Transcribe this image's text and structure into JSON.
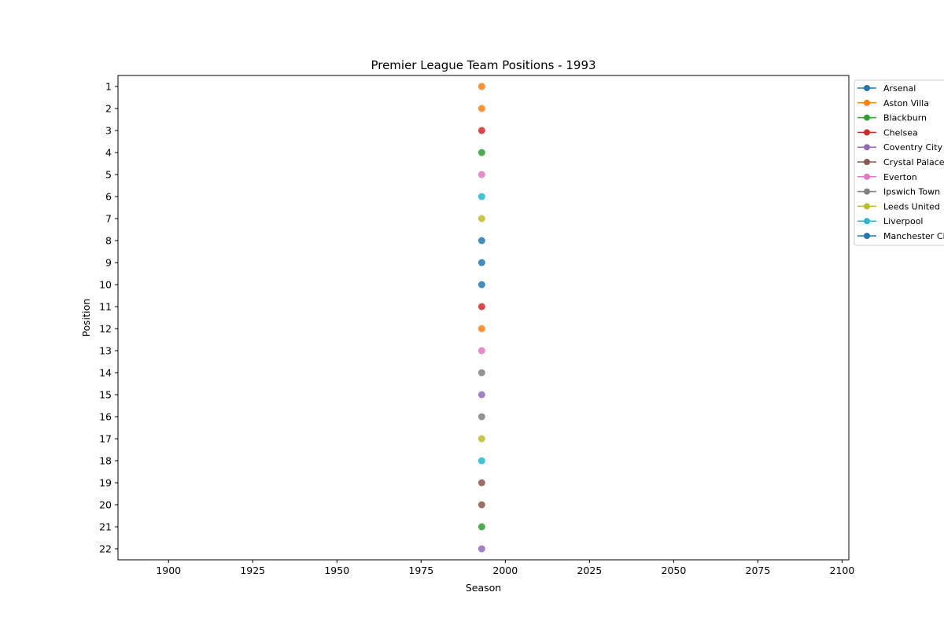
{
  "chart_data": {
    "type": "scatter",
    "title": "Premier League Team Positions - 1993",
    "xlabel": "Season",
    "ylabel": "Position",
    "xlim": [
      1885,
      2102
    ],
    "ylim": [
      22.5,
      0.5
    ],
    "y_inverted": true,
    "x_ticks": [
      1900,
      1925,
      1950,
      1975,
      2000,
      2025,
      2050,
      2075,
      2100
    ],
    "y_ticks": [
      1,
      2,
      3,
      4,
      5,
      6,
      7,
      8,
      9,
      10,
      11,
      12,
      13,
      14,
      15,
      16,
      17,
      18,
      19,
      20,
      21,
      22
    ],
    "grid": false,
    "legend_placement": "outside-right-top",
    "season": 1993,
    "series": [
      {
        "name": "Arsenal",
        "color": "#1f77b4",
        "x": [
          1993
        ],
        "y": [
          10
        ]
      },
      {
        "name": "Aston Villa",
        "color": "#ff7f0e",
        "x": [
          1993
        ],
        "y": [
          2
        ]
      },
      {
        "name": "Blackburn",
        "color": "#2ca02c",
        "x": [
          1993
        ],
        "y": [
          4
        ]
      },
      {
        "name": "Chelsea",
        "color": "#d62728",
        "x": [
          1993
        ],
        "y": [
          11
        ]
      },
      {
        "name": "Coventry City",
        "color": "#9467bd",
        "x": [
          1993
        ],
        "y": [
          15
        ]
      },
      {
        "name": "Crystal Palace",
        "color": "#8c564b",
        "x": [
          1993
        ],
        "y": [
          20
        ]
      },
      {
        "name": "Everton",
        "color": "#e377c2",
        "x": [
          1993
        ],
        "y": [
          13
        ]
      },
      {
        "name": "Ipswich Town",
        "color": "#7f7f7f",
        "x": [
          1993
        ],
        "y": [
          16
        ]
      },
      {
        "name": "Leeds United",
        "color": "#bcbd22",
        "x": [
          1993
        ],
        "y": [
          17
        ]
      },
      {
        "name": "Liverpool",
        "color": "#17becf",
        "x": [
          1993
        ],
        "y": [
          6
        ]
      },
      {
        "name": "Manchester City",
        "color": "#1f77b4",
        "x": [
          1993
        ],
        "y": [
          9
        ]
      },
      {
        "name": "",
        "color": "#1f77b4",
        "x": [
          1993
        ],
        "y": [
          8
        ]
      },
      {
        "name": "",
        "color": "#ff7f0e",
        "x": [
          1993
        ],
        "y": [
          1
        ]
      },
      {
        "name": "",
        "color": "#ff7f0e",
        "x": [
          1993
        ],
        "y": [
          12
        ]
      },
      {
        "name": "",
        "color": "#2ca02c",
        "x": [
          1993
        ],
        "y": [
          21
        ]
      },
      {
        "name": "",
        "color": "#d62728",
        "x": [
          1993
        ],
        "y": [
          3
        ]
      },
      {
        "name": "",
        "color": "#9467bd",
        "x": [
          1993
        ],
        "y": [
          22
        ]
      },
      {
        "name": "",
        "color": "#8c564b",
        "x": [
          1993
        ],
        "y": [
          19
        ]
      },
      {
        "name": "",
        "color": "#e377c2",
        "x": [
          1993
        ],
        "y": [
          5
        ]
      },
      {
        "name": "",
        "color": "#7f7f7f",
        "x": [
          1993
        ],
        "y": [
          14
        ]
      },
      {
        "name": "",
        "color": "#bcbd22",
        "x": [
          1993
        ],
        "y": [
          7
        ]
      },
      {
        "name": "",
        "color": "#17becf",
        "x": [
          1993
        ],
        "y": [
          18
        ]
      }
    ]
  }
}
